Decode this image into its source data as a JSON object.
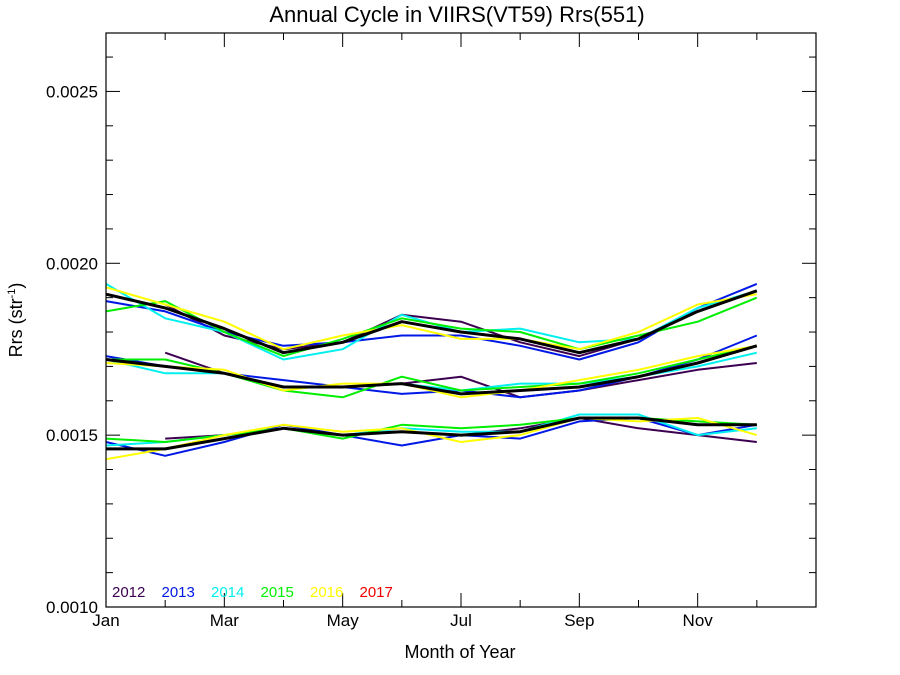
{
  "chart_data": {
    "type": "line",
    "title": "Annual Cycle in VIIRS(VT59) Rrs(551)",
    "xlabel": "Month of Year",
    "ylabel": "Rrs (str",
    "ylabel_sup": "-1",
    "ylabel_end": ")",
    "xlim": [
      1,
      13
    ],
    "ylim": [
      0.001,
      0.00267
    ],
    "x_ticks": [
      {
        "value": 1,
        "label": "Jan"
      },
      {
        "value": 3,
        "label": "Mar"
      },
      {
        "value": 5,
        "label": "May"
      },
      {
        "value": 7,
        "label": "Jul"
      },
      {
        "value": 9,
        "label": "Sep"
      },
      {
        "value": 11,
        "label": "Nov"
      }
    ],
    "x_minor_ticks": [
      2,
      4,
      6,
      8,
      10,
      12
    ],
    "y_ticks": [
      {
        "value": 0.001,
        "label": "0.0010"
      },
      {
        "value": 0.0015,
        "label": "0.0015"
      },
      {
        "value": 0.002,
        "label": "0.0020"
      },
      {
        "value": 0.0025,
        "label": "0.0025"
      }
    ],
    "y_minor_ticks": [
      0.0011,
      0.0012,
      0.0013,
      0.0014,
      0.0016,
      0.0017,
      0.0018,
      0.0019,
      0.0021,
      0.0022,
      0.0023,
      0.0024,
      0.0026
    ],
    "grid": false,
    "legend_placement": "bottom-left",
    "legend": [
      {
        "label": "2012",
        "color": "#3d0050"
      },
      {
        "label": "2013",
        "color": "#0018e6"
      },
      {
        "label": "2014",
        "color": "#00f0f0"
      },
      {
        "label": "2015",
        "color": "#00ee00"
      },
      {
        "label": "2016",
        "color": "#ffff00"
      },
      {
        "label": "2017",
        "color": "#ee0000"
      }
    ],
    "x": [
      1,
      2,
      3,
      4,
      5,
      6,
      7,
      8,
      9,
      10,
      11,
      12
    ],
    "series": [
      {
        "name": "2012",
        "color": "#3d0050",
        "group": "upper",
        "values": [
          null,
          0.00188,
          0.00179,
          0.00175,
          0.00177,
          0.00185,
          0.00183,
          0.00177,
          0.00173,
          0.00178,
          0.00186,
          0.00192
        ]
      },
      {
        "name": "2013",
        "color": "#0018e6",
        "group": "upper",
        "values": [
          0.00189,
          0.00186,
          0.0018,
          0.00176,
          0.00177,
          0.00179,
          0.00179,
          0.00176,
          0.00172,
          0.00177,
          0.00187,
          0.00194
        ]
      },
      {
        "name": "2014",
        "color": "#00f0f0",
        "group": "upper",
        "values": [
          0.00194,
          0.00184,
          0.0018,
          0.00172,
          0.00175,
          0.00185,
          0.0018,
          0.00181,
          0.00177,
          0.00178,
          0.00187,
          0.00192
        ]
      },
      {
        "name": "2015",
        "color": "#00ee00",
        "group": "upper",
        "values": [
          0.00186,
          0.00189,
          0.0018,
          0.00173,
          0.00178,
          0.00184,
          0.00181,
          0.0018,
          0.00175,
          0.00179,
          0.00183,
          0.0019
        ]
      },
      {
        "name": "2016",
        "color": "#ffff00",
        "group": "upper",
        "values": [
          0.00193,
          0.00188,
          0.00183,
          0.00175,
          0.00179,
          0.00182,
          0.00178,
          0.00178,
          0.00175,
          0.0018,
          0.00188,
          0.00191
        ]
      },
      {
        "name": "",
        "color": "#000000",
        "group": "upper-mean",
        "values": [
          0.00191,
          0.00187,
          0.00181,
          0.00174,
          0.00177,
          0.00183,
          0.0018,
          0.00178,
          0.00174,
          0.00178,
          0.00186,
          0.00192
        ]
      },
      {
        "name": "2012",
        "color": "#3d0050",
        "group": "middle",
        "values": [
          null,
          0.00174,
          0.00168,
          0.00164,
          0.00164,
          0.00165,
          0.00167,
          0.00161,
          0.00163,
          0.00166,
          0.00169,
          0.00171
        ]
      },
      {
        "name": "2013",
        "color": "#0018e6",
        "group": "middle",
        "values": [
          0.00173,
          0.0017,
          0.00168,
          0.00166,
          0.00164,
          0.00162,
          0.00163,
          0.00161,
          0.00163,
          0.00167,
          0.00172,
          0.00179
        ]
      },
      {
        "name": "2014",
        "color": "#00f0f0",
        "group": "middle",
        "values": [
          0.00172,
          0.00168,
          0.00168,
          0.00164,
          0.00164,
          0.00165,
          0.00163,
          0.00165,
          0.00165,
          0.00167,
          0.0017,
          0.00174
        ]
      },
      {
        "name": "2015",
        "color": "#00ee00",
        "group": "middle",
        "values": [
          0.00172,
          0.00172,
          0.00168,
          0.00163,
          0.00161,
          0.00167,
          0.00163,
          0.00164,
          0.00165,
          0.00168,
          0.00172,
          0.00176
        ]
      },
      {
        "name": "2016",
        "color": "#ffff00",
        "group": "middle",
        "values": [
          0.00171,
          0.0017,
          0.00169,
          0.00163,
          0.00165,
          0.00165,
          0.00161,
          0.00163,
          0.00166,
          0.00169,
          0.00173,
          0.00176
        ]
      },
      {
        "name": "",
        "color": "#000000",
        "group": "middle-mean",
        "values": [
          0.00172,
          0.0017,
          0.00168,
          0.00164,
          0.00164,
          0.00165,
          0.00162,
          0.00163,
          0.00164,
          0.00167,
          0.00171,
          0.00176
        ]
      },
      {
        "name": "2012",
        "color": "#3d0050",
        "group": "lower",
        "values": [
          null,
          0.00149,
          0.0015,
          0.00152,
          0.0015,
          0.00151,
          0.0015,
          0.00152,
          0.00155,
          0.00152,
          0.0015,
          0.00148
        ]
      },
      {
        "name": "2013",
        "color": "#0018e6",
        "group": "lower",
        "values": [
          0.00148,
          0.00144,
          0.00148,
          0.00153,
          0.0015,
          0.00147,
          0.0015,
          0.00149,
          0.00154,
          0.00155,
          0.0015,
          0.00153
        ]
      },
      {
        "name": "2014",
        "color": "#00f0f0",
        "group": "lower",
        "values": [
          0.00147,
          0.00148,
          0.0015,
          0.00152,
          0.0015,
          0.00152,
          0.00151,
          0.00151,
          0.00156,
          0.00156,
          0.0015,
          0.00152
        ]
      },
      {
        "name": "2015",
        "color": "#00ee00",
        "group": "lower",
        "values": [
          0.00149,
          0.00148,
          0.0015,
          0.00152,
          0.00149,
          0.00153,
          0.00152,
          0.00153,
          0.00155,
          0.00155,
          0.00154,
          0.00153
        ]
      },
      {
        "name": "2016",
        "color": "#ffff00",
        "group": "lower",
        "values": [
          0.00143,
          0.00146,
          0.0015,
          0.00153,
          0.00151,
          0.00152,
          0.00148,
          0.0015,
          0.00155,
          0.00154,
          0.00155,
          0.0015
        ]
      },
      {
        "name": "",
        "color": "#000000",
        "group": "lower-mean",
        "values": [
          0.00146,
          0.00146,
          0.00149,
          0.00152,
          0.0015,
          0.00151,
          0.0015,
          0.00151,
          0.00155,
          0.00155,
          0.00153,
          0.00153
        ]
      }
    ]
  }
}
